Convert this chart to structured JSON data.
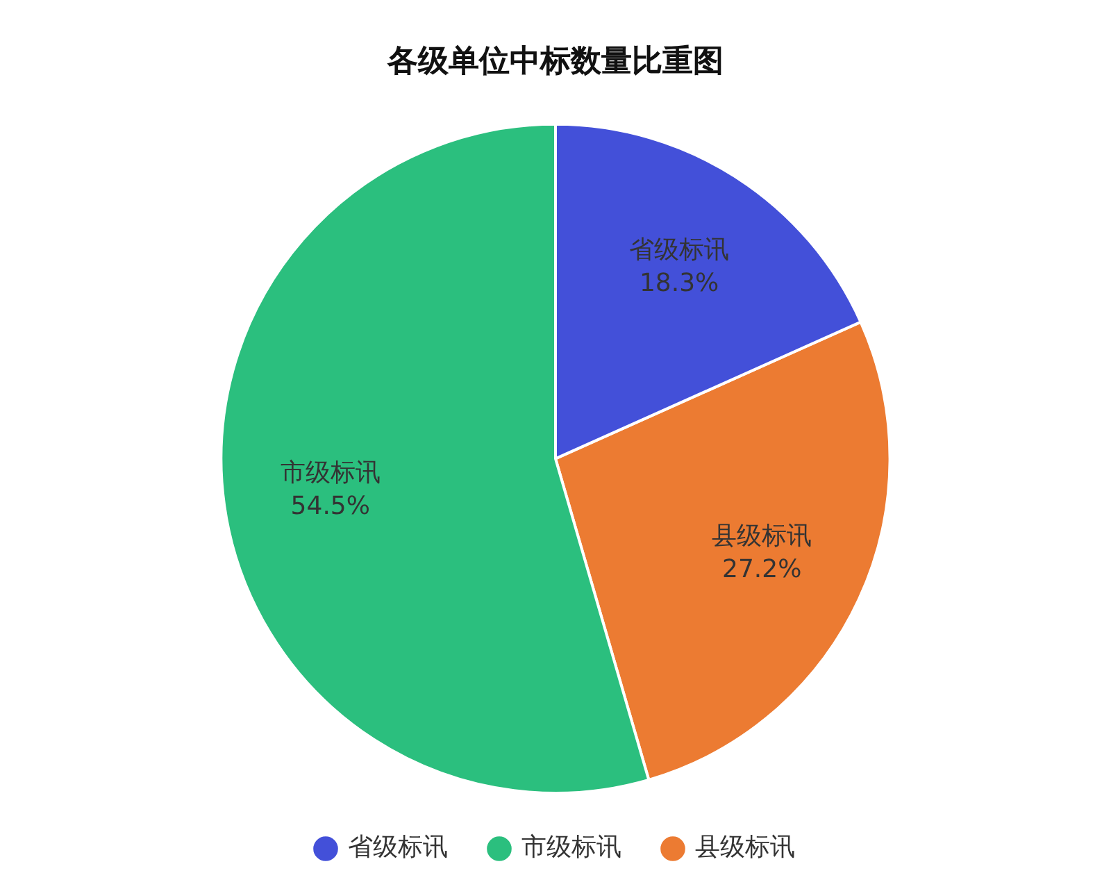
{
  "chart_data": {
    "type": "pie",
    "title": "各级单位中标数量比重图",
    "categories": [
      "省级标讯",
      "市级标讯",
      "县级标讯"
    ],
    "values": [
      18.3,
      54.5,
      27.2
    ],
    "colors": [
      "#4350d9",
      "#2bbf7e",
      "#ec7b32"
    ],
    "value_labels": [
      "18.3%",
      "54.5%",
      "27.2%"
    ],
    "legend": "bottom"
  }
}
